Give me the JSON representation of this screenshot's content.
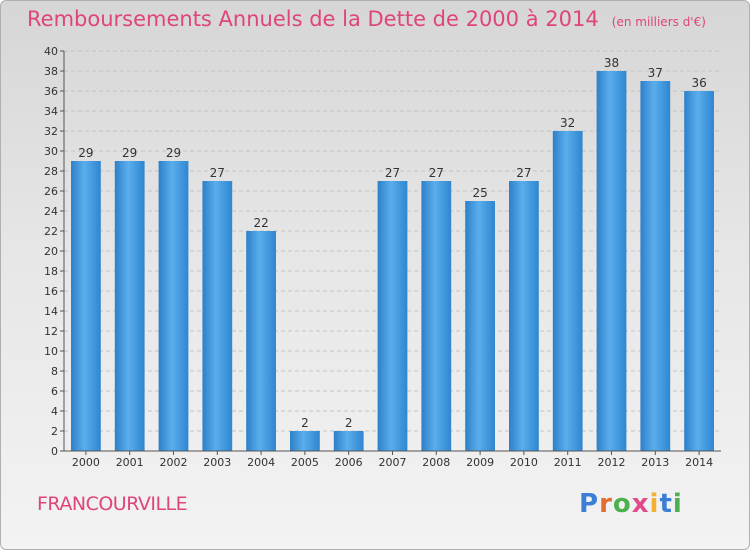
{
  "header": {
    "title": "Remboursements Annuels de la Dette de 2000 à 2014",
    "unit": "(en milliers d'€)"
  },
  "footer": {
    "city": "FRANCOURVILLE",
    "logo": [
      "P",
      "r",
      "o",
      "x",
      "i",
      "t",
      "i"
    ],
    "logo_colors": [
      "#3a7fd5",
      "#e36c2f",
      "#4caf50",
      "#e34a8a",
      "#f2b134",
      "#3a7fd5",
      "#4caf50"
    ]
  },
  "chart_data": {
    "type": "bar",
    "title": "Remboursements Annuels de la Dette de 2000 à 2014",
    "ylabel": "en milliers d'€",
    "xlabel": "",
    "categories": [
      "2000",
      "2001",
      "2002",
      "2003",
      "2004",
      "2005",
      "2006",
      "2007",
      "2008",
      "2009",
      "2010",
      "2011",
      "2012",
      "2013",
      "2014"
    ],
    "values": [
      29,
      29,
      29,
      27,
      22,
      2,
      2,
      27,
      27,
      25,
      27,
      32,
      38,
      37,
      36
    ],
    "ylim": [
      0,
      40
    ],
    "yticks": [
      0,
      2,
      4,
      6,
      8,
      10,
      12,
      14,
      16,
      18,
      20,
      22,
      24,
      26,
      28,
      30,
      32,
      34,
      36,
      38,
      40
    ],
    "grid": true,
    "bar_color": "#4a9fe0"
  }
}
